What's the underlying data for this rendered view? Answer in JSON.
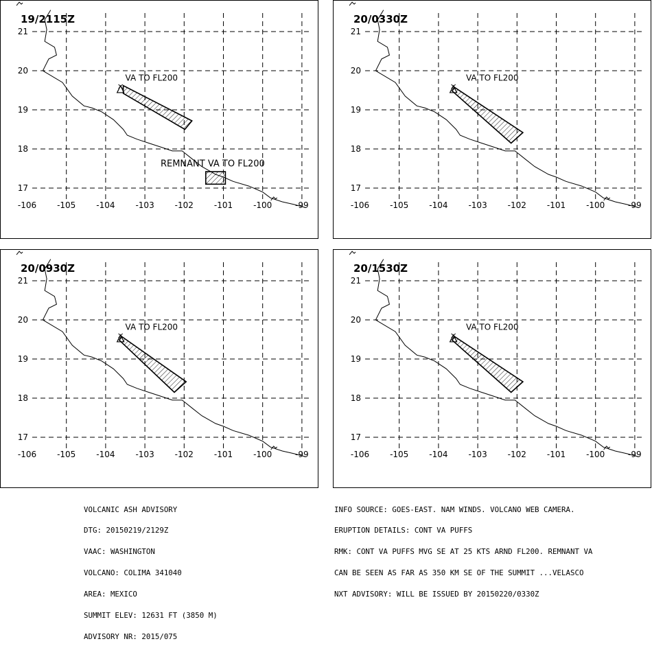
{
  "panels": [
    {
      "id": "p1",
      "time": "19/2115Z",
      "labels": [
        {
          "text": "VA TO FL200",
          "lon": -103.5,
          "lat": 19.75
        },
        {
          "text": "REMNANT VA TO FL200",
          "lon": -102.6,
          "lat": 17.55
        }
      ],
      "areas": [
        [
          [
            -103.55,
            19.62
          ],
          [
            -101.8,
            18.72
          ],
          [
            -101.98,
            18.5
          ],
          [
            -103.55,
            19.42
          ]
        ],
        [
          [
            -101.45,
            17.42
          ],
          [
            -100.95,
            17.42
          ],
          [
            -100.95,
            17.1
          ],
          [
            -101.45,
            17.1
          ]
        ]
      ]
    },
    {
      "id": "p2",
      "time": "20/0330Z",
      "labels": [
        {
          "text": "VA TO FL200",
          "lon": -103.3,
          "lat": 19.75
        }
      ],
      "areas": [
        [
          [
            -103.6,
            19.58
          ],
          [
            -101.85,
            18.42
          ],
          [
            -102.15,
            18.15
          ],
          [
            -103.65,
            19.48
          ]
        ]
      ]
    },
    {
      "id": "p3",
      "time": "20/0930Z",
      "labels": [
        {
          "text": "VA TO FL200",
          "lon": -103.5,
          "lat": 19.75
        }
      ],
      "areas": [
        [
          [
            -103.6,
            19.58
          ],
          [
            -101.95,
            18.42
          ],
          [
            -102.25,
            18.15
          ],
          [
            -103.65,
            19.48
          ]
        ]
      ]
    },
    {
      "id": "p4",
      "time": "20/1530Z",
      "labels": [
        {
          "text": "VA TO FL200",
          "lon": -103.3,
          "lat": 19.75
        }
      ],
      "areas": [
        [
          [
            -103.6,
            19.58
          ],
          [
            -101.85,
            18.42
          ],
          [
            -102.15,
            18.15
          ],
          [
            -103.65,
            19.48
          ]
        ]
      ]
    }
  ],
  "map": {
    "lon_ticks": [
      -106,
      -105,
      -104,
      -103,
      -102,
      -101,
      -100,
      -99
    ],
    "lon_labels": [
      "-106",
      "-105",
      "-104",
      "-103",
      "-102",
      "-101",
      "-100",
      "-99"
    ],
    "lat_ticks": [
      21,
      20,
      19,
      18,
      17
    ],
    "lat_labels": [
      "21",
      "20",
      "19",
      "18",
      "17"
    ],
    "volcano": {
      "name": "COLIMA",
      "lon": -103.62,
      "lat": 19.51
    },
    "coastline": [
      [
        -105.4,
        21.55
      ],
      [
        -105.55,
        21.3
      ],
      [
        -105.5,
        21.05
      ],
      [
        -105.55,
        20.75
      ],
      [
        -105.3,
        20.6
      ],
      [
        -105.25,
        20.4
      ],
      [
        -105.45,
        20.3
      ],
      [
        -105.6,
        20.0
      ],
      [
        -105.1,
        19.7
      ],
      [
        -104.85,
        19.35
      ],
      [
        -104.55,
        19.1
      ],
      [
        -104.35,
        19.05
      ],
      [
        -104.1,
        18.95
      ],
      [
        -103.8,
        18.75
      ],
      [
        -103.55,
        18.5
      ],
      [
        -103.45,
        18.35
      ],
      [
        -103.2,
        18.25
      ],
      [
        -102.9,
        18.15
      ],
      [
        -102.6,
        18.05
      ],
      [
        -102.3,
        17.95
      ],
      [
        -102.05,
        17.95
      ],
      [
        -101.8,
        17.75
      ],
      [
        -101.55,
        17.55
      ],
      [
        -101.2,
        17.35
      ],
      [
        -101.0,
        17.28
      ],
      [
        -100.75,
        17.17
      ],
      [
        -100.35,
        17.05
      ],
      [
        -100.0,
        16.9
      ],
      [
        -99.8,
        16.75
      ],
      [
        -99.5,
        16.65
      ],
      [
        -99.2,
        16.58
      ],
      [
        -98.9,
        16.5
      ]
    ],
    "mountain_marks": [
      {
        "lon": -106.2,
        "lat": 21.7
      },
      {
        "lon": -99.72,
        "lat": 16.72
      }
    ]
  },
  "advisory_left": [
    "VOLCANIC ASH ADVISORY",
    "DTG: 20150219/2129Z",
    "VAAC: WASHINGTON",
    "VOLCANO: COLIMA 341040",
    "AREA: MEXICO",
    "SUMMIT ELEV: 12631 FT (3850 M)",
    "ADVISORY NR: 2015/075"
  ],
  "advisory_right": [
    "INFO SOURCE: GOES-EAST. NAM WINDS. VOLCANO WEB CAMERA.",
    "ERUPTION DETAILS: CONT VA PUFFS",
    "RMK: CONT VA PUFFS MVG SE AT 25 KTS ARND FL200. REMNANT VA",
    "CAN BE SEEN AS FAR AS 350 KM SE OF THE SUMMIT ...VELASCO",
    "NXT ADVISORY: WILL BE ISSUED BY 20150220/0330Z"
  ]
}
